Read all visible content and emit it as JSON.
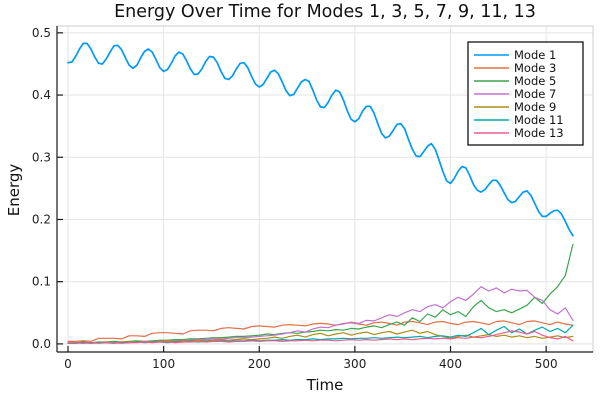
{
  "title": "Energy Over Time for Modes 1, 3, 5, 7, 9, 11, 13",
  "chart_data": {
    "type": "line",
    "title": "Energy Over Time for Modes 1, 3, 5, 7, 9, 11, 13",
    "xlabel": "Time",
    "ylabel": "Energy",
    "xlim": [
      -11.5,
      549
    ],
    "ylim": [
      -0.013,
      0.511
    ],
    "grid": true,
    "legend_position": "top-right",
    "x_ticks": {
      "values": [
        0,
        100,
        200,
        300,
        400,
        500
      ],
      "labels": [
        "0",
        "100",
        "200",
        "300",
        "400",
        "500"
      ]
    },
    "y_ticks": {
      "values": [
        0.0,
        0.1,
        0.2,
        0.3,
        0.4,
        0.5
      ],
      "labels": [
        "0.0",
        "0.1",
        "0.2",
        "0.3",
        "0.4",
        "0.5"
      ]
    },
    "series": [
      {
        "name": "Mode 1",
        "color": "#009af9",
        "lw": 1.7,
        "x0": 0,
        "dx": 4,
        "y": [
          0.452,
          0.453,
          0.462,
          0.474,
          0.483,
          0.483,
          0.474,
          0.461,
          0.451,
          0.45,
          0.458,
          0.469,
          0.479,
          0.48,
          0.473,
          0.46,
          0.448,
          0.443,
          0.448,
          0.46,
          0.47,
          0.474,
          0.469,
          0.457,
          0.444,
          0.438,
          0.441,
          0.451,
          0.463,
          0.469,
          0.466,
          0.455,
          0.442,
          0.433,
          0.434,
          0.442,
          0.454,
          0.462,
          0.461,
          0.452,
          0.438,
          0.427,
          0.425,
          0.431,
          0.442,
          0.451,
          0.452,
          0.444,
          0.43,
          0.418,
          0.413,
          0.417,
          0.427,
          0.437,
          0.44,
          0.434,
          0.421,
          0.407,
          0.399,
          0.401,
          0.411,
          0.421,
          0.425,
          0.422,
          0.408,
          0.392,
          0.381,
          0.38,
          0.388,
          0.4,
          0.408,
          0.405,
          0.392,
          0.375,
          0.361,
          0.357,
          0.362,
          0.374,
          0.382,
          0.382,
          0.371,
          0.354,
          0.338,
          0.331,
          0.334,
          0.343,
          0.353,
          0.354,
          0.346,
          0.329,
          0.313,
          0.302,
          0.301,
          0.309,
          0.318,
          0.322,
          0.313,
          0.296,
          0.277,
          0.262,
          0.258,
          0.266,
          0.278,
          0.285,
          0.283,
          0.271,
          0.256,
          0.247,
          0.244,
          0.248,
          0.256,
          0.263,
          0.263,
          0.255,
          0.243,
          0.232,
          0.227,
          0.229,
          0.237,
          0.244,
          0.246,
          0.239,
          0.226,
          0.213,
          0.205,
          0.205,
          0.21,
          0.214,
          0.215,
          0.209,
          0.197,
          0.184,
          0.174
        ]
      },
      {
        "name": "Mode 3",
        "color": "#e26f46",
        "lw": 1.2,
        "x0": 0,
        "dx": 8,
        "y": [
          0.004,
          0.004,
          0.005,
          0.004,
          0.009,
          0.009,
          0.009,
          0.008,
          0.013,
          0.013,
          0.012,
          0.017,
          0.018,
          0.018,
          0.017,
          0.016,
          0.021,
          0.022,
          0.022,
          0.021,
          0.025,
          0.026,
          0.025,
          0.024,
          0.028,
          0.029,
          0.028,
          0.027,
          0.03,
          0.031,
          0.03,
          0.029,
          0.032,
          0.033,
          0.032,
          0.03,
          0.033,
          0.034,
          0.032,
          0.03,
          0.034,
          0.035,
          0.033,
          0.03,
          0.035,
          0.036,
          0.034,
          0.031,
          0.035,
          0.036,
          0.033,
          0.031,
          0.035,
          0.036,
          0.034,
          0.031,
          0.036,
          0.037,
          0.034,
          0.031,
          0.036,
          0.037,
          0.034,
          0.031,
          0.035,
          0.032,
          0.03
        ]
      },
      {
        "name": "Mode 5",
        "color": "#3da44d",
        "lw": 1.2,
        "x0": 0,
        "dx": 8,
        "y": [
          0.002,
          0.002,
          0.003,
          0.002,
          0.003,
          0.003,
          0.004,
          0.003,
          0.004,
          0.005,
          0.004,
          0.005,
          0.006,
          0.006,
          0.007,
          0.007,
          0.008,
          0.008,
          0.009,
          0.01,
          0.01,
          0.011,
          0.012,
          0.012,
          0.013,
          0.014,
          0.016,
          0.015,
          0.017,
          0.018,
          0.017,
          0.019,
          0.02,
          0.022,
          0.021,
          0.023,
          0.022,
          0.025,
          0.024,
          0.027,
          0.029,
          0.026,
          0.031,
          0.035,
          0.03,
          0.042,
          0.036,
          0.048,
          0.043,
          0.055,
          0.047,
          0.052,
          0.044,
          0.06,
          0.07,
          0.058,
          0.052,
          0.055,
          0.05,
          0.056,
          0.062,
          0.075,
          0.065,
          0.08,
          0.092,
          0.11,
          0.16
        ]
      },
      {
        "name": "Mode 7",
        "color": "#c271d2",
        "lw": 1.2,
        "x0": 0,
        "dx": 8,
        "y": [
          0.001,
          0.001,
          0.002,
          0.001,
          0.002,
          0.002,
          0.002,
          0.003,
          0.003,
          0.003,
          0.004,
          0.004,
          0.004,
          0.005,
          0.005,
          0.006,
          0.006,
          0.007,
          0.007,
          0.008,
          0.008,
          0.009,
          0.01,
          0.01,
          0.011,
          0.012,
          0.013,
          0.014,
          0.016,
          0.018,
          0.021,
          0.019,
          0.024,
          0.027,
          0.026,
          0.03,
          0.032,
          0.035,
          0.033,
          0.038,
          0.037,
          0.042,
          0.047,
          0.044,
          0.05,
          0.055,
          0.052,
          0.06,
          0.063,
          0.058,
          0.068,
          0.075,
          0.07,
          0.08,
          0.092,
          0.085,
          0.09,
          0.082,
          0.088,
          0.085,
          0.086,
          0.075,
          0.07,
          0.055,
          0.048,
          0.058,
          0.038
        ]
      },
      {
        "name": "Mode 9",
        "color": "#ac8d18",
        "lw": 1.2,
        "x0": 0,
        "dx": 8,
        "y": [
          0.001,
          0.002,
          0.001,
          0.002,
          0.002,
          0.003,
          0.002,
          0.003,
          0.003,
          0.004,
          0.003,
          0.004,
          0.004,
          0.005,
          0.004,
          0.005,
          0.005,
          0.006,
          0.005,
          0.006,
          0.007,
          0.006,
          0.007,
          0.008,
          0.007,
          0.008,
          0.009,
          0.011,
          0.009,
          0.012,
          0.014,
          0.011,
          0.015,
          0.017,
          0.013,
          0.016,
          0.018,
          0.014,
          0.017,
          0.019,
          0.015,
          0.018,
          0.02,
          0.016,
          0.019,
          0.022,
          0.017,
          0.02,
          0.015,
          0.012,
          0.009,
          0.012,
          0.014,
          0.011,
          0.013,
          0.015,
          0.012,
          0.014,
          0.011,
          0.013,
          0.01,
          0.012,
          0.009,
          0.011,
          0.013,
          0.01,
          0.012
        ]
      },
      {
        "name": "Mode 11",
        "color": "#00a9ad",
        "lw": 1.2,
        "x0": 0,
        "dx": 8,
        "y": [
          0.001,
          0.001,
          0.002,
          0.001,
          0.002,
          0.002,
          0.001,
          0.002,
          0.002,
          0.003,
          0.002,
          0.003,
          0.003,
          0.002,
          0.003,
          0.003,
          0.004,
          0.003,
          0.004,
          0.004,
          0.005,
          0.004,
          0.005,
          0.005,
          0.006,
          0.005,
          0.006,
          0.006,
          0.007,
          0.006,
          0.007,
          0.007,
          0.008,
          0.007,
          0.008,
          0.008,
          0.009,
          0.008,
          0.009,
          0.009,
          0.01,
          0.009,
          0.01,
          0.011,
          0.01,
          0.011,
          0.012,
          0.01,
          0.012,
          0.013,
          0.011,
          0.014,
          0.012,
          0.018,
          0.025,
          0.015,
          0.022,
          0.028,
          0.018,
          0.024,
          0.016,
          0.022,
          0.027,
          0.02,
          0.025,
          0.018,
          0.03
        ]
      },
      {
        "name": "Mode 13",
        "color": "#ed5d92",
        "lw": 1.2,
        "x0": 0,
        "dx": 8,
        "y": [
          0.001,
          0.002,
          0.001,
          0.002,
          0.001,
          0.002,
          0.002,
          0.001,
          0.002,
          0.002,
          0.003,
          0.002,
          0.003,
          0.003,
          0.002,
          0.003,
          0.003,
          0.004,
          0.003,
          0.004,
          0.004,
          0.003,
          0.004,
          0.004,
          0.005,
          0.004,
          0.005,
          0.005,
          0.004,
          0.005,
          0.005,
          0.006,
          0.005,
          0.006,
          0.006,
          0.005,
          0.006,
          0.007,
          0.006,
          0.007,
          0.006,
          0.007,
          0.008,
          0.007,
          0.008,
          0.007,
          0.008,
          0.009,
          0.008,
          0.009,
          0.008,
          0.01,
          0.009,
          0.011,
          0.01,
          0.012,
          0.015,
          0.018,
          0.021,
          0.019,
          0.016,
          0.02,
          0.014,
          0.01,
          0.008,
          0.012,
          0.005
        ]
      }
    ],
    "colors": {
      "grid": "#e4e4e4",
      "frame": "#cccccc",
      "spine": "#1a1a1a",
      "tick_label": "#1f1f1f",
      "legend_border": "#000000",
      "legend_bg": "#ffffff"
    }
  }
}
